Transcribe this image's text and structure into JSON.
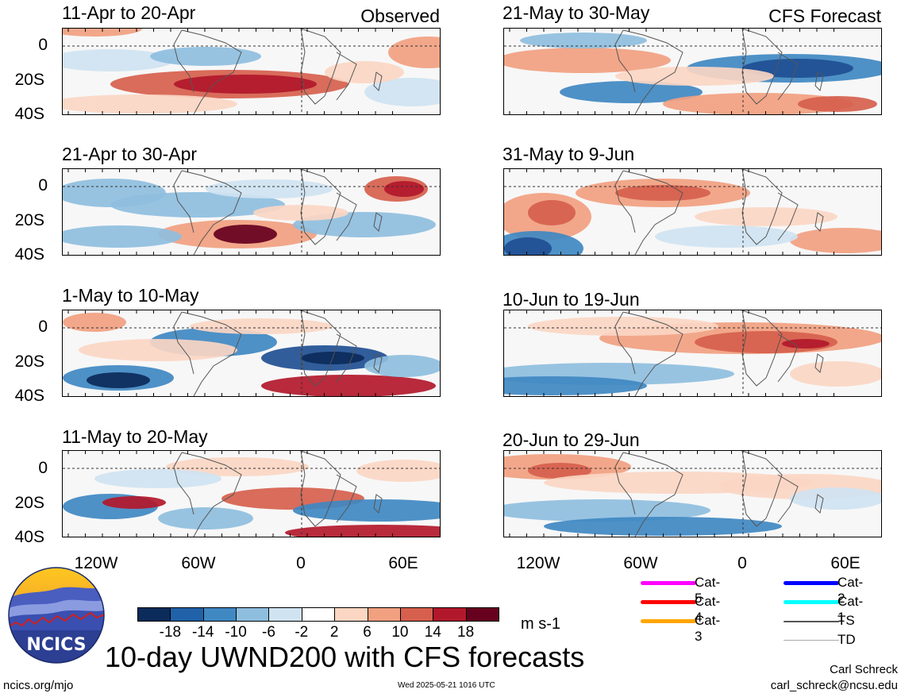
{
  "panels_left": [
    {
      "title": "11-Apr to 20-Apr",
      "tag": "Observed"
    },
    {
      "title": "21-Apr to 30-Apr",
      "tag": ""
    },
    {
      "title": "1-May to 10-May",
      "tag": ""
    },
    {
      "title": "11-May to 20-May",
      "tag": ""
    }
  ],
  "panels_right": [
    {
      "title": "21-May to 30-May",
      "tag": "CFS Forecast"
    },
    {
      "title": "31-May to 9-Jun",
      "tag": ""
    },
    {
      "title": "10-Jun to 19-Jun",
      "tag": ""
    },
    {
      "title": "20-Jun to 29-Jun",
      "tag": ""
    }
  ],
  "y_ticks": [
    "0",
    "20S",
    "40S"
  ],
  "x_ticks": [
    "120W",
    "60W",
    "0",
    "60E"
  ],
  "colorbar": {
    "labels": [
      "-18",
      "-14",
      "-10",
      "-6",
      "-2",
      "2",
      "6",
      "10",
      "14",
      "18"
    ],
    "colors": [
      "#0b2b5a",
      "#2061a8",
      "#3f88c2",
      "#8ebede",
      "#cfe3f1",
      "#ffffff",
      "#fbd6c3",
      "#f1a080",
      "#d6604d",
      "#b2182b",
      "#67001f"
    ],
    "units": "m s-1"
  },
  "storm_legend": [
    {
      "label": "Cat-5",
      "color": "#ff00ff"
    },
    {
      "label": "Cat-4",
      "color": "#ff0000"
    },
    {
      "label": "Cat-3",
      "color": "#ffa500"
    },
    {
      "label": "Cat-2",
      "color": "#0000ff"
    },
    {
      "label": "Cat-1",
      "color": "#00ffff"
    },
    {
      "label": "TS",
      "color": "#555555"
    },
    {
      "label": "TD",
      "color": "#aaaaaa"
    }
  ],
  "logo_text": "NCICS",
  "main_title": "10-day UWND200 with CFS forecasts",
  "footer": {
    "url": "ncics.org/mjo",
    "timestamp": "Wed 2025-05-21 1016 UTC",
    "author": "Carl Schreck",
    "email": "carl_schreck@ncsu.edu"
  }
}
